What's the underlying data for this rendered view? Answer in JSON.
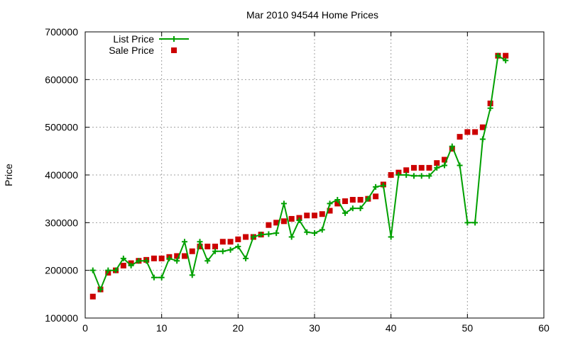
{
  "chart_data": {
    "type": "line",
    "title": "Mar 2010 94544 Home Prices",
    "xlabel": "",
    "ylabel": "Price",
    "xlim": [
      0,
      60
    ],
    "ylim": [
      100000,
      700000
    ],
    "x_ticks": [
      "0",
      "10",
      "20",
      "30",
      "40",
      "50",
      "60"
    ],
    "y_ticks": [
      "100000",
      "200000",
      "300000",
      "400000",
      "500000",
      "600000",
      "700000"
    ],
    "grid": true,
    "legend_position": "top-left",
    "series": [
      {
        "name": "List Price",
        "style": "line+cross",
        "color": "#00a000",
        "points": [
          [
            1,
            200000
          ],
          [
            2,
            160000
          ],
          [
            3,
            200000
          ],
          [
            4,
            200000
          ],
          [
            5,
            225000
          ],
          [
            6,
            210000
          ],
          [
            7,
            220000
          ],
          [
            8,
            220000
          ],
          [
            9,
            185000
          ],
          [
            10,
            185000
          ],
          [
            11,
            225000
          ],
          [
            12,
            220000
          ],
          [
            13,
            260000
          ],
          [
            14,
            190000
          ],
          [
            15,
            260000
          ],
          [
            16,
            220000
          ],
          [
            17,
            240000
          ],
          [
            18,
            240000
          ],
          [
            19,
            243000
          ],
          [
            20,
            250000
          ],
          [
            21,
            225000
          ],
          [
            22,
            270000
          ],
          [
            23,
            275000
          ],
          [
            24,
            276000
          ],
          [
            25,
            278000
          ],
          [
            26,
            340000
          ],
          [
            27,
            270000
          ],
          [
            28,
            305000
          ],
          [
            29,
            280000
          ],
          [
            30,
            278000
          ],
          [
            31,
            285000
          ],
          [
            32,
            340000
          ],
          [
            33,
            348000
          ],
          [
            34,
            320000
          ],
          [
            35,
            330000
          ],
          [
            36,
            330000
          ],
          [
            37,
            350000
          ],
          [
            38,
            375000
          ],
          [
            39,
            378000
          ],
          [
            40,
            270000
          ],
          [
            41,
            400000
          ],
          [
            42,
            400000
          ],
          [
            43,
            398000
          ],
          [
            44,
            398000
          ],
          [
            45,
            398000
          ],
          [
            46,
            415000
          ],
          [
            47,
            420000
          ],
          [
            48,
            460000
          ],
          [
            49,
            420000
          ],
          [
            50,
            300000
          ],
          [
            51,
            300000
          ],
          [
            52,
            475000
          ],
          [
            53,
            540000
          ],
          [
            54,
            650000
          ],
          [
            55,
            640000
          ]
        ]
      },
      {
        "name": "Sale Price",
        "style": "square",
        "color": "#cc0000",
        "points": [
          [
            1,
            145000
          ],
          [
            2,
            160000
          ],
          [
            3,
            195000
          ],
          [
            4,
            200000
          ],
          [
            5,
            210000
          ],
          [
            6,
            215000
          ],
          [
            7,
            220000
          ],
          [
            8,
            222000
          ],
          [
            9,
            225000
          ],
          [
            10,
            225000
          ],
          [
            11,
            228000
          ],
          [
            12,
            230000
          ],
          [
            13,
            230000
          ],
          [
            14,
            240000
          ],
          [
            15,
            250000
          ],
          [
            16,
            250000
          ],
          [
            17,
            250000
          ],
          [
            18,
            260000
          ],
          [
            19,
            260000
          ],
          [
            20,
            265000
          ],
          [
            21,
            270000
          ],
          [
            22,
            270000
          ],
          [
            23,
            275000
          ],
          [
            24,
            295000
          ],
          [
            25,
            300000
          ],
          [
            26,
            303000
          ],
          [
            27,
            308000
          ],
          [
            28,
            310000
          ],
          [
            29,
            315000
          ],
          [
            30,
            315000
          ],
          [
            31,
            318000
          ],
          [
            32,
            325000
          ],
          [
            33,
            340000
          ],
          [
            34,
            345000
          ],
          [
            35,
            348000
          ],
          [
            36,
            348000
          ],
          [
            37,
            350000
          ],
          [
            38,
            355000
          ],
          [
            39,
            380000
          ],
          [
            40,
            400000
          ],
          [
            41,
            405000
          ],
          [
            42,
            410000
          ],
          [
            43,
            415000
          ],
          [
            44,
            415000
          ],
          [
            45,
            415000
          ],
          [
            46,
            425000
          ],
          [
            47,
            432000
          ],
          [
            48,
            455000
          ],
          [
            49,
            480000
          ],
          [
            50,
            490000
          ],
          [
            51,
            490000
          ],
          [
            52,
            500000
          ],
          [
            53,
            550000
          ],
          [
            54,
            650000
          ],
          [
            55,
            650000
          ]
        ]
      }
    ]
  }
}
